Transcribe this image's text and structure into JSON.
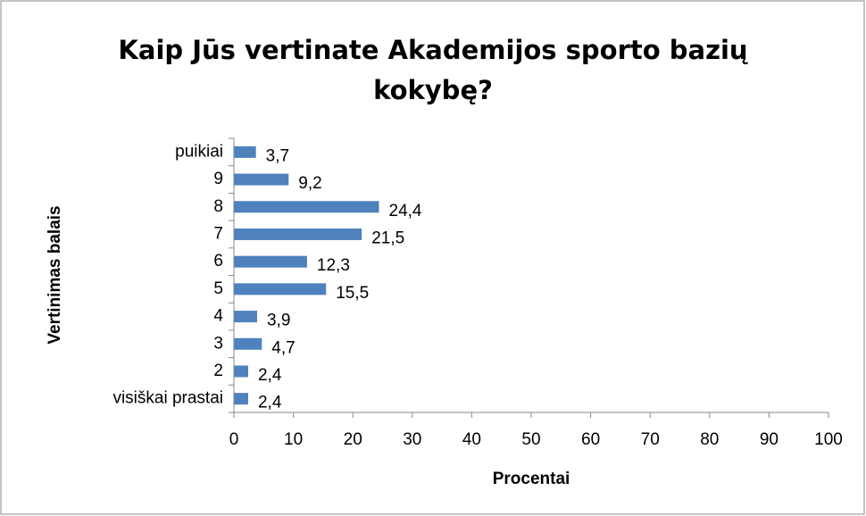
{
  "chart_data": {
    "type": "bar",
    "orientation": "horizontal",
    "title": "Kaip Jūs vertinate Akademijos sporto bazių kokybę?",
    "x_label": "Procentai",
    "y_label": "Vertinimas balais",
    "categories": [
      "visiškai prastai",
      "2",
      "3",
      "4",
      "5",
      "6",
      "7",
      "8",
      "9",
      "puikiai"
    ],
    "values": [
      2.4,
      2.4,
      4.7,
      3.9,
      15.5,
      12.3,
      21.5,
      24.4,
      9.2,
      3.7
    ],
    "value_labels": [
      "2,4",
      "2,4",
      "4,7",
      "3,9",
      "15,5",
      "12,3",
      "21,5",
      "24,4",
      "9,2",
      "3,7"
    ],
    "color": "#4f81bd",
    "xlim": [
      0,
      100
    ],
    "xticks": [
      0,
      10,
      20,
      30,
      40,
      50,
      60,
      70,
      80,
      90,
      100
    ],
    "grid": false
  }
}
